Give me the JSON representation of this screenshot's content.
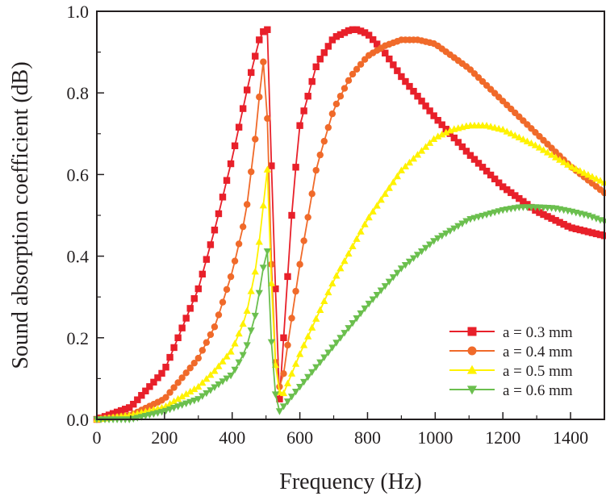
{
  "chart_data": {
    "type": "line",
    "title": "",
    "xlabel": "Frequency (Hz)",
    "ylabel": "Sound absorption coefficient (dB)",
    "xlim": [
      0,
      1500
    ],
    "ylim": [
      0,
      1.0
    ],
    "xticks": [
      0,
      200,
      400,
      600,
      800,
      1000,
      1200,
      1400
    ],
    "yticks": [
      0.0,
      0.2,
      0.4,
      0.6,
      0.8,
      1.0
    ],
    "xtick_labels": [
      "0",
      "200",
      "400",
      "600",
      "800",
      "1000",
      "1200",
      "1400"
    ],
    "ytick_labels": [
      "0.0",
      "0.2",
      "0.4",
      "0.6",
      "0.8",
      "1.0"
    ],
    "grid": false,
    "legend_position": "bottom-right",
    "series": [
      {
        "name": "a = 0.3 mm",
        "color": "#e8202a",
        "marker": "square",
        "x": [
          0,
          100,
          200,
          300,
          350,
          400,
          450,
          480,
          495,
          505,
          520,
          540,
          560,
          580,
          600,
          650,
          700,
          750,
          770,
          800,
          850,
          900,
          1000,
          1100,
          1200,
          1300,
          1400,
          1500
        ],
        "y": [
          0.0,
          0.03,
          0.12,
          0.32,
          0.47,
          0.64,
          0.83,
          0.93,
          0.955,
          0.955,
          0.5,
          0.05,
          0.3,
          0.55,
          0.72,
          0.87,
          0.935,
          0.955,
          0.955,
          0.945,
          0.9,
          0.84,
          0.74,
          0.65,
          0.57,
          0.51,
          0.47,
          0.45
        ]
      },
      {
        "name": "a = 0.4 mm",
        "color": "#f06a2a",
        "marker": "circle",
        "x": [
          0,
          100,
          200,
          300,
          350,
          400,
          440,
          470,
          490,
          500,
          515,
          530,
          545,
          560,
          600,
          650,
          700,
          750,
          800,
          850,
          900,
          950,
          1000,
          1100,
          1200,
          1300,
          1400,
          1500
        ],
        "y": [
          0.0,
          0.01,
          0.05,
          0.15,
          0.23,
          0.36,
          0.5,
          0.7,
          0.88,
          0.86,
          0.4,
          0.1,
          0.07,
          0.16,
          0.38,
          0.62,
          0.76,
          0.84,
          0.89,
          0.915,
          0.93,
          0.93,
          0.92,
          0.86,
          0.78,
          0.7,
          0.62,
          0.555
        ]
      },
      {
        "name": "a = 0.5 mm",
        "color": "#fff200",
        "marker": "triangle-up",
        "x": [
          0,
          100,
          200,
          300,
          350,
          400,
          440,
          470,
          490,
          500,
          505,
          515,
          530,
          545,
          560,
          600,
          650,
          700,
          800,
          900,
          1000,
          1050,
          1100,
          1150,
          1200,
          1300,
          1400,
          1500
        ],
        "y": [
          0.0,
          0.01,
          0.03,
          0.08,
          0.12,
          0.17,
          0.25,
          0.37,
          0.5,
          0.62,
          0.61,
          0.35,
          0.1,
          0.05,
          0.08,
          0.16,
          0.25,
          0.34,
          0.49,
          0.61,
          0.69,
          0.71,
          0.72,
          0.72,
          0.71,
          0.67,
          0.62,
          0.58
        ]
      },
      {
        "name": "a = 0.6 mm",
        "color": "#6bbf4e",
        "marker": "triangle-down",
        "x": [
          0,
          100,
          200,
          300,
          350,
          400,
          440,
          470,
          490,
          500,
          505,
          515,
          530,
          540,
          550,
          600,
          700,
          800,
          900,
          1000,
          1100,
          1200,
          1250,
          1300,
          1350,
          1400,
          1450,
          1500
        ],
        "y": [
          0.0,
          0.0,
          0.02,
          0.05,
          0.08,
          0.11,
          0.17,
          0.26,
          0.36,
          0.42,
          0.41,
          0.2,
          0.04,
          0.02,
          0.03,
          0.08,
          0.18,
          0.28,
          0.37,
          0.44,
          0.49,
          0.513,
          0.52,
          0.52,
          0.518,
          0.51,
          0.5,
          0.485
        ]
      }
    ]
  }
}
